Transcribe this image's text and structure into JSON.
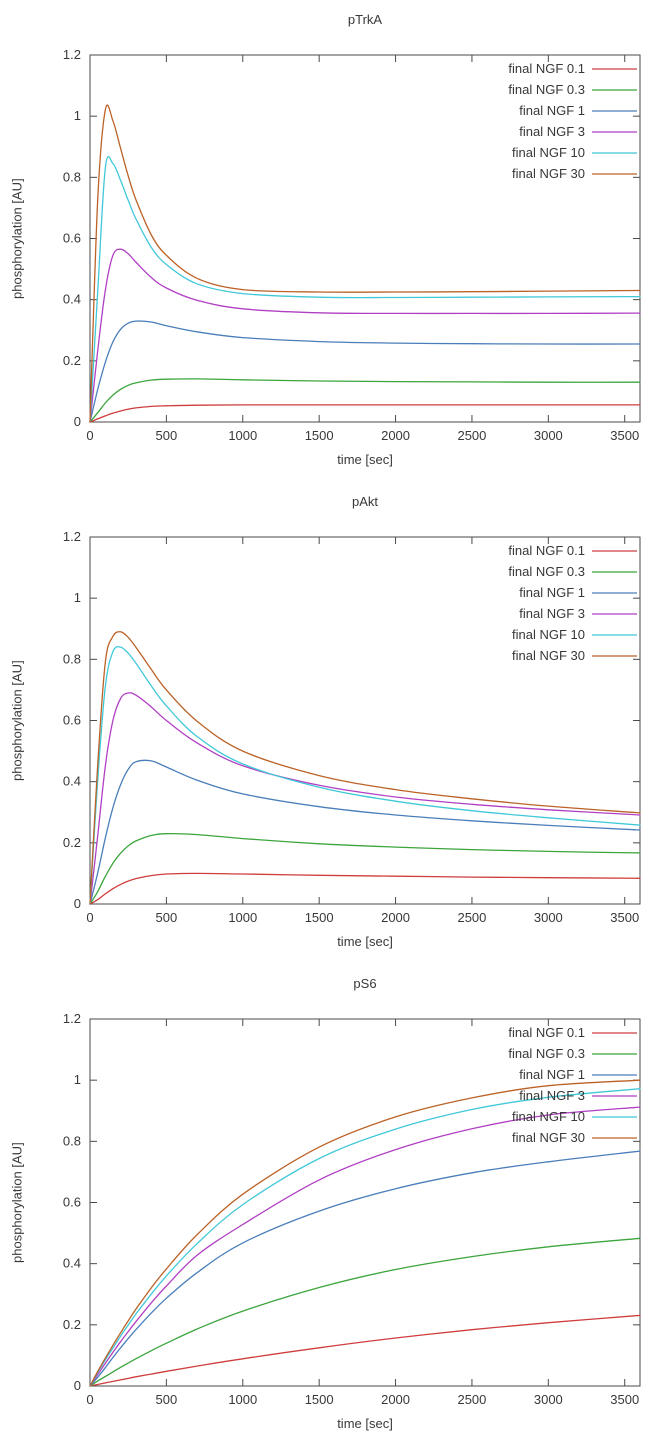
{
  "page": {
    "background": "#ffffff",
    "text_color": "#383838",
    "border_color": "#4a4a4a"
  },
  "chart_data": [
    {
      "type": "line",
      "title": "pTrkA",
      "xlabel": "time [sec]",
      "ylabel": "phosphorylation [AU]",
      "xlim": [
        0,
        3600
      ],
      "ylim": [
        0,
        1.2
      ],
      "xticks": [
        0,
        500,
        1000,
        1500,
        2000,
        2500,
        3000,
        3500
      ],
      "yticks": [
        0,
        0.2,
        0.4,
        0.6,
        0.8,
        1,
        1.2
      ],
      "legend_position": "top-right",
      "grid": false,
      "x": [
        0,
        50,
        100,
        150,
        200,
        250,
        300,
        400,
        500,
        700,
        1000,
        1500,
        2000,
        2500,
        3000,
        3600
      ],
      "series": [
        {
          "name": "final NGF 0.1",
          "color": "#cf3d3d",
          "values": [
            0,
            0.01,
            0.02,
            0.029,
            0.036,
            0.042,
            0.046,
            0.051,
            0.053,
            0.055,
            0.056,
            0.056,
            0.056,
            0.056,
            0.056,
            0.056
          ]
        },
        {
          "name": "final NGF 0.3",
          "color": "#3ca53c",
          "values": [
            0,
            0.03,
            0.062,
            0.088,
            0.107,
            0.12,
            0.128,
            0.137,
            0.14,
            0.141,
            0.138,
            0.134,
            0.132,
            0.131,
            0.13,
            0.13
          ]
        },
        {
          "name": "final NGF 1",
          "color": "#4a7ebb",
          "values": [
            0,
            0.105,
            0.195,
            0.262,
            0.303,
            0.323,
            0.33,
            0.327,
            0.315,
            0.295,
            0.276,
            0.263,
            0.258,
            0.256,
            0.255,
            0.255
          ]
        },
        {
          "name": "final NGF 3",
          "color": "#b13fc4",
          "values": [
            0,
            0.23,
            0.43,
            0.545,
            0.565,
            0.55,
            0.523,
            0.473,
            0.438,
            0.398,
            0.37,
            0.357,
            0.355,
            0.355,
            0.355,
            0.356
          ]
        },
        {
          "name": "final NGF 10",
          "color": "#40c8d8",
          "values": [
            0,
            0.42,
            0.83,
            0.845,
            0.79,
            0.725,
            0.665,
            0.572,
            0.515,
            0.452,
            0.42,
            0.408,
            0.407,
            0.408,
            0.409,
            0.41
          ]
        },
        {
          "name": "final NGF 30",
          "color": "#bb6227",
          "values": [
            0,
            0.72,
            1.02,
            0.985,
            0.895,
            0.805,
            0.728,
            0.613,
            0.545,
            0.47,
            0.433,
            0.425,
            0.425,
            0.426,
            0.428,
            0.43
          ]
        }
      ]
    },
    {
      "type": "line",
      "title": "pAkt",
      "xlabel": "time [sec]",
      "ylabel": "phosphorylation [AU]",
      "xlim": [
        0,
        3600
      ],
      "ylim": [
        0,
        1.2
      ],
      "xticks": [
        0,
        500,
        1000,
        1500,
        2000,
        2500,
        3000,
        3500
      ],
      "yticks": [
        0,
        0.2,
        0.4,
        0.6,
        0.8,
        1,
        1.2
      ],
      "legend_position": "top-right",
      "grid": false,
      "x": [
        0,
        50,
        100,
        150,
        200,
        250,
        300,
        400,
        500,
        700,
        1000,
        1500,
        2000,
        2500,
        3000,
        3600
      ],
      "series": [
        {
          "name": "final NGF 0.1",
          "color": "#cf3d3d",
          "values": [
            0,
            0.014,
            0.033,
            0.05,
            0.064,
            0.075,
            0.083,
            0.093,
            0.098,
            0.1,
            0.098,
            0.094,
            0.091,
            0.088,
            0.086,
            0.084
          ]
        },
        {
          "name": "final NGF 0.3",
          "color": "#3ca53c",
          "values": [
            0,
            0.04,
            0.09,
            0.133,
            0.166,
            0.19,
            0.206,
            0.224,
            0.23,
            0.227,
            0.214,
            0.197,
            0.186,
            0.178,
            0.172,
            0.167
          ]
        },
        {
          "name": "final NGF 1",
          "color": "#4a7ebb",
          "values": [
            0,
            0.1,
            0.215,
            0.315,
            0.39,
            0.44,
            0.465,
            0.468,
            0.448,
            0.405,
            0.36,
            0.318,
            0.291,
            0.272,
            0.257,
            0.242
          ]
        },
        {
          "name": "final NGF 3",
          "color": "#b13fc4",
          "values": [
            0,
            0.22,
            0.45,
            0.6,
            0.672,
            0.69,
            0.683,
            0.645,
            0.6,
            0.527,
            0.452,
            0.388,
            0.35,
            0.326,
            0.308,
            0.291
          ]
        },
        {
          "name": "final NGF 10",
          "color": "#40c8d8",
          "values": [
            0,
            0.4,
            0.71,
            0.825,
            0.84,
            0.82,
            0.788,
            0.714,
            0.648,
            0.548,
            0.458,
            0.382,
            0.336,
            0.305,
            0.282,
            0.258
          ]
        },
        {
          "name": "final NGF 30",
          "color": "#bb6227",
          "values": [
            0,
            0.45,
            0.79,
            0.875,
            0.89,
            0.872,
            0.84,
            0.768,
            0.7,
            0.598,
            0.5,
            0.42,
            0.374,
            0.344,
            0.32,
            0.298
          ]
        }
      ]
    },
    {
      "type": "line",
      "title": "pS6",
      "xlabel": "time [sec]",
      "ylabel": "phosphorylation [AU]",
      "xlim": [
        0,
        3600
      ],
      "ylim": [
        0,
        1.2
      ],
      "xticks": [
        0,
        500,
        1000,
        1500,
        2000,
        2500,
        3000,
        3500
      ],
      "yticks": [
        0,
        0.2,
        0.4,
        0.6,
        0.8,
        1,
        1.2
      ],
      "legend_position": "top-right",
      "grid": false,
      "x": [
        0,
        50,
        100,
        150,
        200,
        250,
        300,
        400,
        500,
        700,
        1000,
        1500,
        2000,
        2500,
        3000,
        3600
      ],
      "series": [
        {
          "name": "final NGF 0.1",
          "color": "#cf3d3d",
          "values": [
            0,
            0.005,
            0.01,
            0.015,
            0.02,
            0.025,
            0.03,
            0.039,
            0.048,
            0.065,
            0.089,
            0.125,
            0.157,
            0.184,
            0.207,
            0.231
          ]
        },
        {
          "name": "final NGF 0.3",
          "color": "#3ca53c",
          "values": [
            0,
            0.016,
            0.031,
            0.046,
            0.061,
            0.075,
            0.089,
            0.115,
            0.14,
            0.186,
            0.245,
            0.322,
            0.381,
            0.423,
            0.455,
            0.483
          ]
        },
        {
          "name": "final NGF 1",
          "color": "#4a7ebb",
          "values": [
            0,
            0.028,
            0.06,
            0.093,
            0.125,
            0.155,
            0.184,
            0.238,
            0.287,
            0.37,
            0.468,
            0.572,
            0.645,
            0.697,
            0.733,
            0.768
          ]
        },
        {
          "name": "final NGF 3",
          "color": "#b13fc4",
          "values": [
            0,
            0.037,
            0.074,
            0.11,
            0.145,
            0.178,
            0.21,
            0.271,
            0.327,
            0.427,
            0.528,
            0.674,
            0.773,
            0.841,
            0.886,
            0.912
          ]
        },
        {
          "name": "final NGF 10",
          "color": "#40c8d8",
          "values": [
            0,
            0.044,
            0.085,
            0.124,
            0.163,
            0.199,
            0.235,
            0.3,
            0.36,
            0.465,
            0.593,
            0.744,
            0.84,
            0.904,
            0.944,
            0.972
          ]
        },
        {
          "name": "final NGF 30",
          "color": "#bb6227",
          "values": [
            0,
            0.047,
            0.091,
            0.133,
            0.174,
            0.213,
            0.251,
            0.32,
            0.383,
            0.494,
            0.627,
            0.781,
            0.88,
            0.942,
            0.982,
            1.0
          ]
        }
      ]
    }
  ]
}
